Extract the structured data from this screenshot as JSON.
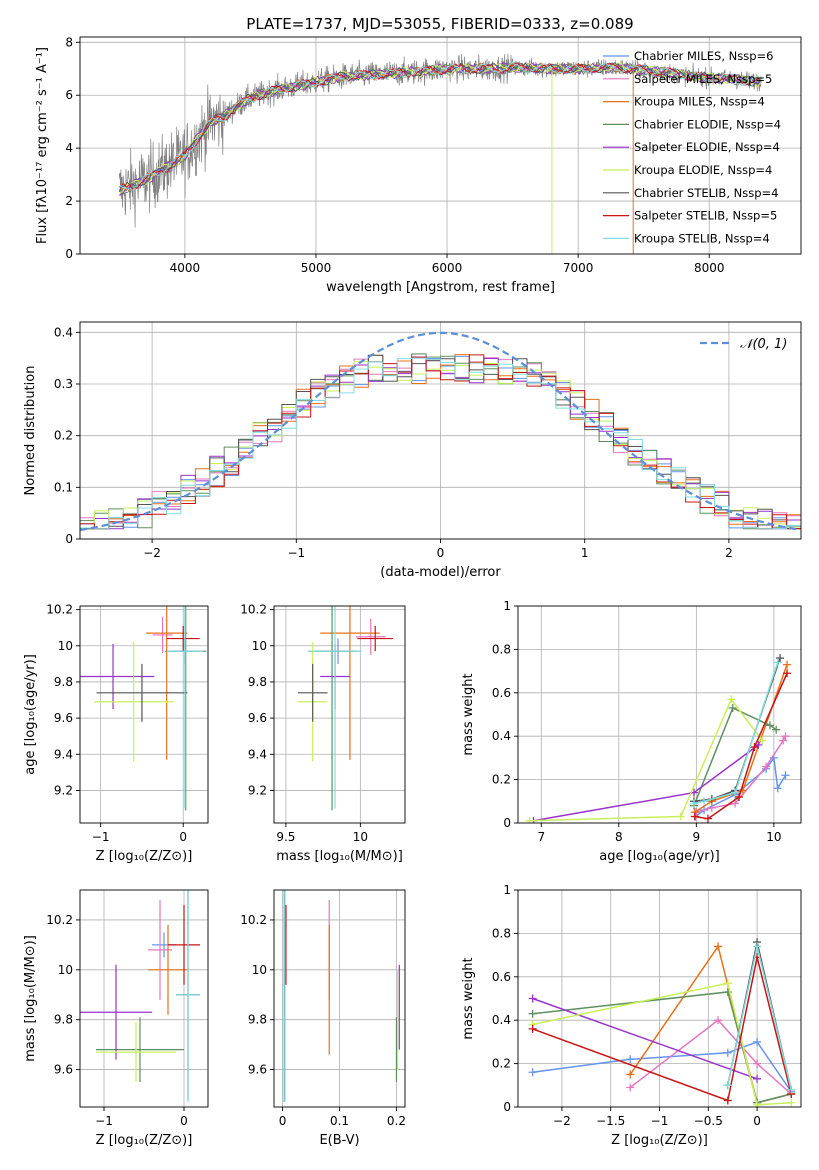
{
  "title": "PLATE=1737, MJD=53055, FIBERID=0333, z=0.089",
  "chart_data": [
    {
      "id": "spectrum",
      "type": "line",
      "xlabel": "wavelength [Angstrom, rest frame]",
      "ylabel": "Flux [fλ10⁻¹⁷ erg cm⁻² s⁻¹ A⁻¹]",
      "xlim": [
        3200,
        8700
      ],
      "ylim": [
        0,
        8.2
      ],
      "xticks": [
        4000,
        5000,
        6000,
        7000,
        8000
      ],
      "yticks": [
        0,
        2,
        4,
        6,
        8
      ],
      "legend_position": "right",
      "legend": [
        {
          "label": "Chabrier MILES, N_SSP=6",
          "color": "#6495ed"
        },
        {
          "label": "Salpeter MILES, N_SSP=5",
          "color": "#e377c2"
        },
        {
          "label": "Kroupa MILES, N_SSP=4",
          "color": "#e8701a"
        },
        {
          "label": "Chabrier ELODIE, N_SSP=4",
          "color": "#5f8f5f"
        },
        {
          "label": "Salpeter ELODIE, N_SSP=4",
          "color": "#9932cc"
        },
        {
          "label": "Kroupa ELODIE, N_SSP=4",
          "color": "#c8f058"
        },
        {
          "label": "Chabrier STELIB, N_SSP=4",
          "color": "#555555"
        },
        {
          "label": "Salpeter STELIB, N_SSP=5",
          "color": "#c81414"
        },
        {
          "label": "Kroupa STELIB, N_SSP=4",
          "color": "#7fdde0"
        }
      ],
      "data_color": "#808080",
      "model_anchor_x": [
        3500,
        3600,
        3700,
        3800,
        3900,
        4000,
        4100,
        4200,
        4300,
        4400,
        4500,
        4700,
        5000,
        5200,
        5500,
        5800,
        6000,
        6300,
        6500,
        6800,
        7000,
        7300,
        7600,
        7900,
        8200,
        8400
      ],
      "model_anchor_y": [
        2.4,
        2.6,
        2.8,
        3.1,
        3.4,
        3.7,
        4.4,
        5.0,
        5.2,
        5.6,
        5.9,
        6.2,
        6.5,
        6.7,
        6.8,
        6.9,
        7.0,
        7.0,
        7.05,
        7.0,
        7.0,
        7.05,
        6.9,
        6.7,
        6.6,
        6.5
      ]
    },
    {
      "id": "residuals",
      "type": "histogram",
      "xlabel": "(data-model)/error",
      "ylabel": "Normed distribution",
      "xlim": [
        -2.5,
        2.5
      ],
      "ylim": [
        0,
        0.42
      ],
      "xticks": [
        -2,
        -1,
        0,
        1,
        2
      ],
      "yticks": [
        0,
        0.1,
        0.2,
        0.3,
        0.4
      ],
      "reference": {
        "label": "𝒩(0, 1)",
        "color": "#5b8fd9",
        "mean": 0,
        "sigma": 1
      },
      "bin_width": 0.1,
      "legend_position": "top-right"
    },
    {
      "id": "age-Z",
      "type": "errorbar",
      "xlabel": "Z [log₁₀(Z/Z⊙)]",
      "ylabel": "age  [log₁₀(age/yr)]",
      "xlim": [
        -1.25,
        0.3
      ],
      "ylim": [
        9.02,
        10.22
      ],
      "xticks": [
        -1,
        0
      ],
      "yticks": [
        9.2,
        9.4,
        9.6,
        9.8,
        10.0,
        10.2
      ],
      "points": [
        {
          "color": "#6495ed",
          "x": 0.02,
          "xerr": 0.15,
          "y": 9.97,
          "yerr": 0.07
        },
        {
          "color": "#e377c2",
          "x": -0.25,
          "xerr": 0.12,
          "y": 10.06,
          "yerr": 0.1
        },
        {
          "color": "#e8701a",
          "x": -0.2,
          "xerr": 0.25,
          "y": 10.07,
          "yerr": 0.7
        },
        {
          "color": "#5f8f5f",
          "x": 0.03,
          "xerr": 0.25,
          "y": 9.97,
          "yerr": 0.88
        },
        {
          "color": "#9932cc",
          "x": -0.85,
          "xerr": 0.5,
          "y": 9.83,
          "yerr": 0.18
        },
        {
          "color": "#c8f058",
          "x": -0.6,
          "xerr": 0.48,
          "y": 9.69,
          "yerr": 0.33
        },
        {
          "color": "#555555",
          "x": -0.5,
          "xerr": 0.55,
          "y": 9.74,
          "yerr": 0.16
        },
        {
          "color": "#c81414",
          "x": 0.0,
          "xerr": 0.2,
          "y": 10.04,
          "yerr": 0.07
        },
        {
          "color": "#7fdde0",
          "x": 0.02,
          "xerr": 0.22,
          "y": 9.97,
          "yerr": 0.87
        }
      ]
    },
    {
      "id": "age-mass",
      "type": "errorbar",
      "xlabel": "mass [log₁₀(M/M⊙)]",
      "ylabel": "",
      "xlim": [
        9.42,
        10.3
      ],
      "ylim": [
        9.02,
        10.22
      ],
      "xticks": [
        9.5,
        10.0
      ],
      "yticks": [
        9.2,
        9.4,
        9.6,
        9.8,
        10.0,
        10.2
      ],
      "points": [
        {
          "color": "#6495ed",
          "x": 9.85,
          "xerr": 0.15,
          "y": 9.97,
          "yerr": 0.07
        },
        {
          "color": "#e377c2",
          "x": 10.07,
          "xerr": 0.1,
          "y": 10.05,
          "yerr": 0.1
        },
        {
          "color": "#e8701a",
          "x": 9.93,
          "xerr": 0.2,
          "y": 10.07,
          "yerr": 0.7
        },
        {
          "color": "#5f8f5f",
          "x": 9.81,
          "xerr": 0.16,
          "y": 9.97,
          "yerr": 0.88
        },
        {
          "color": "#9932cc",
          "x": 9.83,
          "xerr": 0.1,
          "y": 9.83,
          "yerr": 0.18
        },
        {
          "color": "#c8f058",
          "x": 9.68,
          "xerr": 0.1,
          "y": 9.69,
          "yerr": 0.33
        },
        {
          "color": "#555555",
          "x": 9.68,
          "xerr": 0.1,
          "y": 9.74,
          "yerr": 0.16
        },
        {
          "color": "#c81414",
          "x": 10.1,
          "xerr": 0.12,
          "y": 10.04,
          "yerr": 0.07
        },
        {
          "color": "#7fdde0",
          "x": 9.83,
          "xerr": 0.18,
          "y": 9.97,
          "yerr": 0.87
        }
      ]
    },
    {
      "id": "weight-age",
      "type": "line",
      "xlabel": "age  [log₁₀(age/yr)]",
      "ylabel": "mass weight",
      "xlim": [
        6.7,
        10.35
      ],
      "ylim": [
        0,
        1.0
      ],
      "xticks": [
        7,
        8,
        9,
        10
      ],
      "yticks": [
        0,
        0.2,
        0.4,
        0.6,
        0.8,
        1.0
      ],
      "series": [
        {
          "color": "#6495ed",
          "x": [
            8.99,
            9.1,
            9.5,
            9.9,
            10.0,
            10.05,
            10.15
          ],
          "y": [
            0.03,
            0.06,
            0.13,
            0.25,
            0.3,
            0.16,
            0.22
          ]
        },
        {
          "color": "#e377c2",
          "x": [
            9.0,
            9.2,
            9.5,
            9.9,
            10.12,
            10.15
          ],
          "y": [
            0.05,
            0.07,
            0.09,
            0.26,
            0.38,
            0.4
          ]
        },
        {
          "color": "#e8701a",
          "x": [
            8.98,
            9.2,
            9.6,
            10.17
          ],
          "y": [
            0.05,
            0.1,
            0.15,
            0.73
          ]
        },
        {
          "color": "#5f8f5f",
          "x": [
            8.97,
            9.47,
            9.95,
            10.03
          ],
          "y": [
            0.08,
            0.53,
            0.45,
            0.43
          ]
        },
        {
          "color": "#9932cc",
          "x": [
            6.9,
            8.97,
            9.8
          ],
          "y": [
            0.01,
            0.14,
            0.36
          ]
        },
        {
          "color": "#c8f058",
          "x": [
            6.85,
            8.8,
            9.45,
            9.85
          ],
          "y": [
            0.01,
            0.03,
            0.57,
            0.38
          ]
        },
        {
          "color": "#555555",
          "x": [
            8.97,
            9.2,
            9.5,
            10.08
          ],
          "y": [
            0.1,
            0.11,
            0.15,
            0.76
          ]
        },
        {
          "color": "#c81414",
          "x": [
            8.98,
            9.15,
            9.55,
            9.75,
            10.17
          ],
          "y": [
            0.03,
            0.02,
            0.12,
            0.35,
            0.69
          ]
        },
        {
          "color": "#7fdde0",
          "x": [
            8.97,
            9.1,
            9.5,
            10.05
          ],
          "y": [
            0.09,
            0.1,
            0.14,
            0.74
          ]
        }
      ]
    },
    {
      "id": "mass-Z",
      "type": "errorbar",
      "xlabel": "Z [log₁₀(Z/Z⊙)]",
      "ylabel": "mass [log₁₀(M/M⊙)]",
      "xlim": [
        -1.3,
        0.3
      ],
      "ylim": [
        9.45,
        10.32
      ],
      "xticks": [
        -1,
        0
      ],
      "yticks": [
        9.6,
        9.8,
        10.0,
        10.2
      ],
      "points": [
        {
          "color": "#6495ed",
          "x": -0.25,
          "xerr": 0.15,
          "y": 10.1,
          "yerr": 0.05
        },
        {
          "color": "#e377c2",
          "x": -0.3,
          "xerr": 0.15,
          "y": 10.08,
          "yerr": 0.2
        },
        {
          "color": "#e8701a",
          "x": -0.2,
          "xerr": 0.25,
          "y": 10.0,
          "yerr": 0.18
        },
        {
          "color": "#5f8f5f",
          "x": -0.55,
          "xerr": 0.55,
          "y": 9.68,
          "yerr": 0.13
        },
        {
          "color": "#9932cc",
          "x": -0.85,
          "xerr": 0.45,
          "y": 9.83,
          "yerr": 0.19
        },
        {
          "color": "#c8f058",
          "x": -0.6,
          "xerr": 0.5,
          "y": 9.67,
          "yerr": 0.12
        },
        {
          "color": "#555555",
          "x": 0.05,
          "xerr": 0.15,
          "y": 9.9,
          "yerr": 0.42
        },
        {
          "color": "#c81414",
          "x": 0.0,
          "xerr": 0.2,
          "y": 10.1,
          "yerr": 0.16
        },
        {
          "color": "#7fdde0",
          "x": 0.05,
          "xerr": 0.15,
          "y": 9.9,
          "yerr": 0.43
        }
      ]
    },
    {
      "id": "mass-ebv",
      "type": "errorbar",
      "xlabel": "E(B-V)",
      "ylabel": "",
      "xlim": [
        -0.015,
        0.215
      ],
      "ylim": [
        9.45,
        10.32
      ],
      "xticks": [
        0.0,
        0.1,
        0.2
      ],
      "yticks": [
        9.6,
        9.8,
        10.0,
        10.2
      ],
      "points": [
        {
          "color": "#6495ed",
          "x": 0.003,
          "xerr": 0,
          "y": 9.9,
          "yerr": 0.43
        },
        {
          "color": "#e377c2",
          "x": 0.082,
          "xerr": 0,
          "y": 10.08,
          "yerr": 0.2
        },
        {
          "color": "#e8701a",
          "x": 0.082,
          "xerr": 0,
          "y": 9.92,
          "yerr": 0.26
        },
        {
          "color": "#5f8f5f",
          "x": 0.2,
          "xerr": 0,
          "y": 9.68,
          "yerr": 0.13
        },
        {
          "color": "#9932cc",
          "x": 0.205,
          "xerr": 0,
          "y": 9.85,
          "yerr": 0.17
        },
        {
          "color": "#c8f058",
          "x": 0.202,
          "xerr": 0,
          "y": 9.8,
          "yerr": 0.2
        },
        {
          "color": "#555555",
          "x": 0.004,
          "xerr": 0,
          "y": 9.9,
          "yerr": 0.42
        },
        {
          "color": "#c81414",
          "x": 0.006,
          "xerr": 0,
          "y": 10.1,
          "yerr": 0.16
        },
        {
          "color": "#7fdde0",
          "x": 0.004,
          "xerr": 0,
          "y": 9.9,
          "yerr": 0.43
        }
      ]
    },
    {
      "id": "weight-Z",
      "type": "line",
      "xlabel": "Z [log₁₀(Z/Z⊙)]",
      "ylabel": "mass weight",
      "xlim": [
        -2.45,
        0.45
      ],
      "ylim": [
        0,
        1.0
      ],
      "xticks": [
        -2.0,
        -1.5,
        -1.0,
        -0.5,
        0.0
      ],
      "yticks": [
        0,
        0.2,
        0.4,
        0.6,
        0.8,
        1.0
      ],
      "series": [
        {
          "color": "#6495ed",
          "x": [
            -2.3,
            -1.3,
            -0.3,
            0.0,
            0.35
          ],
          "y": [
            0.16,
            0.22,
            0.25,
            0.3,
            0.07
          ]
        },
        {
          "color": "#e377c2",
          "x": [
            -1.3,
            -0.4,
            0.0,
            0.35
          ],
          "y": [
            0.09,
            0.4,
            0.2,
            0.06
          ]
        },
        {
          "color": "#e8701a",
          "x": [
            -1.3,
            -0.4,
            0.0,
            0.35
          ],
          "y": [
            0.15,
            0.74,
            0.02,
            0.06
          ]
        },
        {
          "color": "#5f8f5f",
          "x": [
            -2.3,
            -0.3,
            0.0,
            0.35
          ],
          "y": [
            0.43,
            0.53,
            0.02,
            0.06
          ]
        },
        {
          "color": "#9932cc",
          "x": [
            -2.3,
            0.0
          ],
          "y": [
            0.5,
            0.13
          ]
        },
        {
          "color": "#c8f058",
          "x": [
            -2.3,
            -0.3,
            0.0,
            0.35
          ],
          "y": [
            0.38,
            0.57,
            0.01,
            0.02
          ]
        },
        {
          "color": "#555555",
          "x": [
            -0.3,
            0.0,
            0.35
          ],
          "y": [
            0.1,
            0.76,
            0.08
          ]
        },
        {
          "color": "#c81414",
          "x": [
            -2.3,
            -0.3,
            0.0,
            0.35
          ],
          "y": [
            0.36,
            0.03,
            0.69,
            0.06
          ]
        },
        {
          "color": "#7fdde0",
          "x": [
            -0.3,
            0.0,
            0.35
          ],
          "y": [
            0.1,
            0.74,
            0.08
          ]
        }
      ]
    }
  ]
}
